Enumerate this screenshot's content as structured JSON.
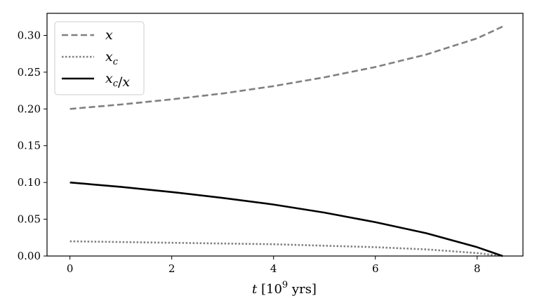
{
  "chart_data": {
    "type": "line",
    "title": "",
    "xlabel": "t [10⁹ yrs]",
    "ylabel": "",
    "xlim": [
      -0.45,
      8.9
    ],
    "ylim": [
      0,
      0.33
    ],
    "x_ticks": [
      0,
      2,
      4,
      6,
      8
    ],
    "x_tick_labels": [
      "0",
      "2",
      "4",
      "6",
      "8"
    ],
    "y_ticks": [
      0.0,
      0.05,
      0.1,
      0.15,
      0.2,
      0.25,
      0.3
    ],
    "y_tick_labels": [
      "0.00",
      "0.05",
      "0.10",
      "0.15",
      "0.20",
      "0.25",
      "0.30"
    ],
    "grid": false,
    "legend_position": "top-left",
    "series": [
      {
        "name": "x",
        "style": "dashed",
        "color": "#808080",
        "x": [
          0,
          1,
          2,
          3,
          4,
          5,
          6,
          7,
          8,
          8.5
        ],
        "y": [
          0.2,
          0.206,
          0.213,
          0.221,
          0.231,
          0.243,
          0.257,
          0.274,
          0.296,
          0.312
        ]
      },
      {
        "name": "x_c",
        "style": "dotted",
        "color": "#808080",
        "x": [
          0,
          1,
          2,
          3,
          4,
          5,
          6,
          7,
          8,
          8.5
        ],
        "y": [
          0.02,
          0.019,
          0.018,
          0.017,
          0.016,
          0.014,
          0.012,
          0.009,
          0.004,
          0.0
        ]
      },
      {
        "name": "x_c/x",
        "style": "solid",
        "color": "#000000",
        "x": [
          0,
          1,
          2,
          3,
          4,
          5,
          6,
          7,
          8,
          8.5
        ],
        "y": [
          0.1,
          0.094,
          0.087,
          0.079,
          0.07,
          0.059,
          0.046,
          0.031,
          0.012,
          0.0
        ]
      }
    ]
  }
}
